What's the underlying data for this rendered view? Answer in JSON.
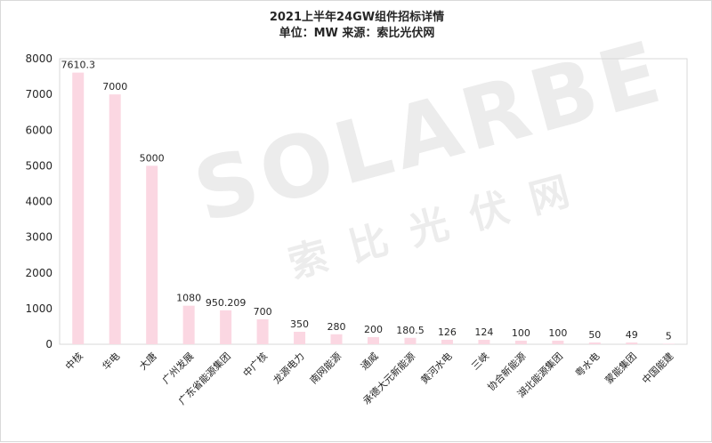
{
  "chart_data": {
    "type": "bar",
    "title": "2021上半年24GW组件招标详情",
    "subtitle": "单位：MW 来源：索比光伏网",
    "categories": [
      "中核",
      "华电",
      "大唐",
      "广州发展",
      "广东省能源集团",
      "中广核",
      "龙源电力",
      "南网能源",
      "通威",
      "承德大元新能源",
      "黄河水电",
      "三峡",
      "协合新能源",
      "湖北能源集团",
      "粤水电",
      "蒙能集团",
      "中国能建"
    ],
    "values": [
      7610.3,
      7000,
      5000,
      1080,
      950.209,
      700,
      350,
      280,
      200,
      180.5,
      126,
      124,
      100,
      100,
      50,
      49,
      5
    ],
    "data_labels": [
      "7610.3",
      "7000",
      "5000",
      "1080",
      "950.209",
      "700",
      "350",
      "280",
      "200",
      "180.5",
      "126",
      "124",
      "100",
      "100",
      "50",
      "49",
      "5"
    ],
    "ylim": [
      0,
      8000
    ],
    "yticks": [
      0,
      1000,
      2000,
      3000,
      4000,
      5000,
      6000,
      7000,
      8000
    ],
    "grid": false,
    "legend": "none",
    "colors": {
      "bar": "#fbd7e2",
      "axis": "#d9d9d9",
      "text": "#262626"
    }
  },
  "watermark": {
    "main": "SOLARBE",
    "sub": "索比光伏网"
  }
}
